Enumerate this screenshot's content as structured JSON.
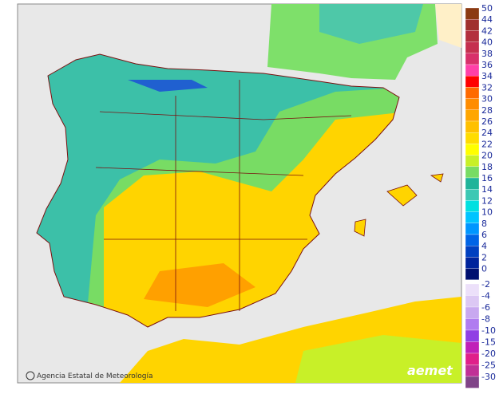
{
  "map": {
    "credit": "Agencia Estatal de Meteorología",
    "logo": "aemet"
  },
  "legend": {
    "positive": [
      {
        "label": 50,
        "color": "#8b3a12"
      },
      {
        "label": 44,
        "color": "#a0302e"
      },
      {
        "label": 42,
        "color": "#b3303e"
      },
      {
        "label": 40,
        "color": "#c5304f"
      },
      {
        "label": 38,
        "color": "#d8306a"
      },
      {
        "label": 36,
        "color": "#ff40a8"
      },
      {
        "label": 34,
        "color": "#ff0000"
      },
      {
        "label": 32,
        "color": "#ff6a00"
      },
      {
        "label": 30,
        "color": "#ff8c00"
      },
      {
        "label": 28,
        "color": "#ffa600"
      },
      {
        "label": 26,
        "color": "#ffc000"
      },
      {
        "label": 24,
        "color": "#ffdc00"
      },
      {
        "label": 22,
        "color": "#ffff00"
      },
      {
        "label": 20,
        "color": "#c8f028"
      },
      {
        "label": 18,
        "color": "#78dc64"
      },
      {
        "label": 16,
        "color": "#20b49a"
      },
      {
        "label": 14,
        "color": "#3cc8b4"
      },
      {
        "label": 12,
        "color": "#00e0e0"
      },
      {
        "label": 10,
        "color": "#00c4ff"
      },
      {
        "label": 8,
        "color": "#0096ff"
      },
      {
        "label": 6,
        "color": "#0064e6"
      },
      {
        "label": 4,
        "color": "#0040c0"
      },
      {
        "label": 2,
        "color": "#00249c"
      },
      {
        "label": 0,
        "color": "#001070"
      }
    ],
    "negative": [
      {
        "label": -2,
        "color": "#ece0fa"
      },
      {
        "label": -4,
        "color": "#dcc8f4"
      },
      {
        "label": -6,
        "color": "#c8a8f0"
      },
      {
        "label": -8,
        "color": "#b07cf0"
      },
      {
        "label": -10,
        "color": "#9040e4"
      },
      {
        "label": -15,
        "color": "#c020b8"
      },
      {
        "label": -20,
        "color": "#e0208a"
      },
      {
        "label": -25,
        "color": "#c03096"
      },
      {
        "label": -30,
        "color": "#804488"
      }
    ]
  }
}
